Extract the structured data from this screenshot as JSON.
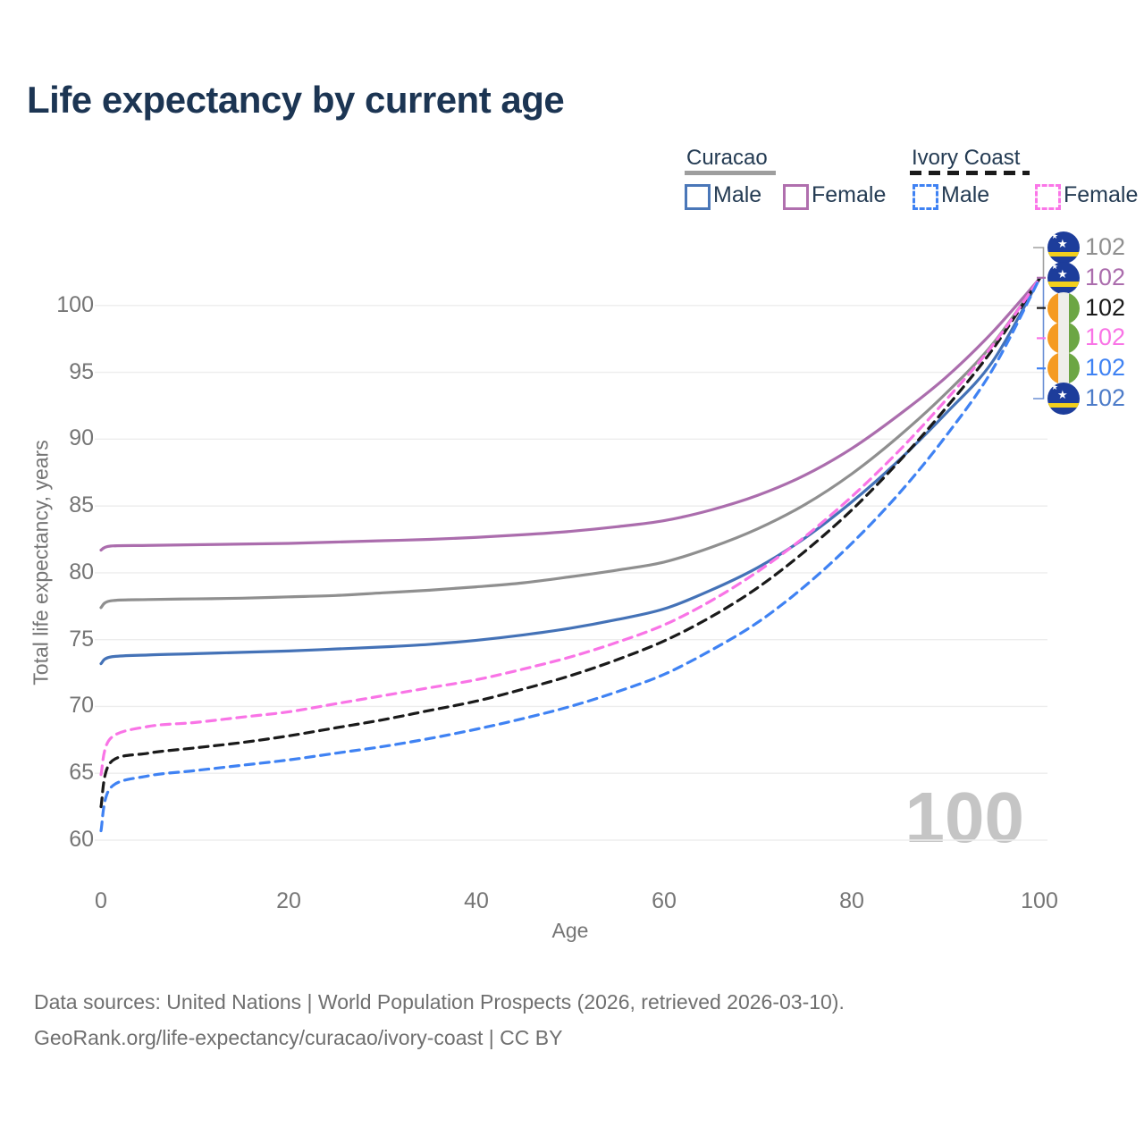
{
  "title": "Life expectancy by current age",
  "legend": {
    "groups": [
      {
        "id": "curacao",
        "label": "Curacao",
        "line_style": "solid",
        "underline_color": "#9e9e9e",
        "items": [
          {
            "label": "Male",
            "color": "#4a77b8",
            "dashed": false
          },
          {
            "label": "Female",
            "color": "#b06fae",
            "dashed": false
          }
        ]
      },
      {
        "id": "ivory-coast",
        "label": "Ivory Coast",
        "line_style": "dashed",
        "underline_color": "#1a1a1a",
        "items": [
          {
            "label": "Male",
            "color": "#3f82f3",
            "dashed": true
          },
          {
            "label": "Female",
            "color": "#fb76e8",
            "dashed": true
          }
        ]
      }
    ]
  },
  "chart_data": {
    "type": "line",
    "title": "Life expectancy by current age",
    "xlabel": "Age",
    "ylabel": "Total life expectancy, years",
    "xlim": [
      0,
      100
    ],
    "ylim": [
      60,
      103
    ],
    "xticks": [
      0,
      20,
      40,
      60,
      80,
      100
    ],
    "yticks": [
      60,
      65,
      70,
      75,
      80,
      85,
      90,
      95,
      100
    ],
    "grid": "horizontal",
    "legend_position": "top-right",
    "x": [
      0,
      1,
      5,
      10,
      15,
      20,
      25,
      30,
      35,
      40,
      45,
      50,
      55,
      60,
      65,
      70,
      75,
      80,
      85,
      90,
      95,
      100
    ],
    "series": [
      {
        "id": "curacao-both",
        "name": "Curacao (both sexes)",
        "country": "Curacao",
        "sex": "Both",
        "color": "#8f8f8f",
        "dashed": false,
        "values": [
          77.4,
          77.9,
          78.0,
          78.05,
          78.1,
          78.2,
          78.3,
          78.5,
          78.7,
          78.95,
          79.25,
          79.7,
          80.2,
          80.8,
          81.9,
          83.3,
          85.1,
          87.4,
          90.2,
          93.4,
          97.1,
          102
        ]
      },
      {
        "id": "curacao-female",
        "name": "Curacao Female",
        "country": "Curacao",
        "sex": "Female",
        "color": "#ab6dad",
        "dashed": false,
        "values": [
          81.7,
          82.0,
          82.05,
          82.1,
          82.15,
          82.2,
          82.3,
          82.4,
          82.5,
          82.65,
          82.85,
          83.1,
          83.45,
          83.9,
          84.7,
          85.8,
          87.3,
          89.3,
          91.8,
          94.6,
          98.0,
          102
        ]
      },
      {
        "id": "curacao-male",
        "name": "Curacao Male",
        "country": "Curacao",
        "sex": "Male",
        "color": "#4472b7",
        "dashed": false,
        "values": [
          73.2,
          73.7,
          73.85,
          73.95,
          74.05,
          74.15,
          74.3,
          74.45,
          74.65,
          74.95,
          75.35,
          75.85,
          76.5,
          77.3,
          78.7,
          80.4,
          82.6,
          85.3,
          88.4,
          91.9,
          95.8,
          102
        ]
      },
      {
        "id": "ivory-coast-both",
        "name": "Ivory Coast (both sexes)",
        "country": "Ivory Coast",
        "sex": "Both",
        "color": "#1a1a1a",
        "dashed": true,
        "values": [
          62.5,
          65.8,
          66.5,
          66.9,
          67.3,
          67.8,
          68.4,
          69.0,
          69.7,
          70.4,
          71.3,
          72.3,
          73.5,
          74.9,
          76.7,
          78.9,
          81.6,
          84.7,
          88.3,
          92.3,
          96.7,
          102
        ]
      },
      {
        "id": "ivory-coast-female",
        "name": "Ivory Coast Female",
        "country": "Ivory Coast",
        "sex": "Female",
        "color": "#f974e6",
        "dashed": true,
        "values": [
          64.9,
          67.6,
          68.5,
          68.8,
          69.2,
          69.6,
          70.2,
          70.8,
          71.4,
          72.0,
          72.8,
          73.7,
          74.8,
          76.1,
          77.9,
          80.1,
          82.7,
          85.7,
          89.1,
          92.9,
          97.0,
          102
        ]
      },
      {
        "id": "ivory-coast-male",
        "name": "Ivory Coast Male",
        "country": "Ivory Coast",
        "sex": "Male",
        "color": "#3f82f3",
        "dashed": true,
        "values": [
          60.7,
          63.9,
          64.8,
          65.2,
          65.6,
          66.0,
          66.5,
          67.0,
          67.6,
          68.3,
          69.1,
          70.0,
          71.1,
          72.4,
          74.2,
          76.3,
          79.0,
          82.2,
          85.9,
          90.2,
          95.2,
          102
        ]
      }
    ]
  },
  "end_labels": [
    {
      "series": "curacao-both",
      "flag": "curacao",
      "value": "102",
      "color": "#8f8f8f"
    },
    {
      "series": "curacao-female",
      "flag": "curacao",
      "value": "102",
      "color": "#ab6dad"
    },
    {
      "series": "ivory-coast-both",
      "flag": "ivory-coast",
      "value": "102",
      "color": "#1a1a1a"
    },
    {
      "series": "ivory-coast-female",
      "flag": "ivory-coast",
      "value": "102",
      "color": "#f974e6"
    },
    {
      "series": "ivory-coast-male",
      "flag": "ivory-coast",
      "value": "102",
      "color": "#3f82f3"
    },
    {
      "series": "curacao-male",
      "flag": "curacao",
      "value": "102",
      "color": "#4d7cc9"
    }
  ],
  "watermark": "100",
  "footer": {
    "line1": "Data sources: United Nations | World Population Prospects (2026, retrieved 2026-03-10).",
    "line2": "GeoRank.org/life-expectancy/curacao/ivory-coast | CC BY"
  },
  "colors": {
    "title_text": "#1c3553",
    "axis_text": "#757575",
    "gridline": "#ededed",
    "watermark": "#c5c5c5",
    "bracket_top": "#a0a0a0",
    "bracket_bottom": "#6b8fd4",
    "curacao_flag_blue": "#1d3d9b",
    "curacao_flag_yellow": "#f2cf1d",
    "ivory_flag_orange": "#f59b22",
    "ivory_flag_white": "#efeeea",
    "ivory_flag_green": "#6ca644"
  }
}
